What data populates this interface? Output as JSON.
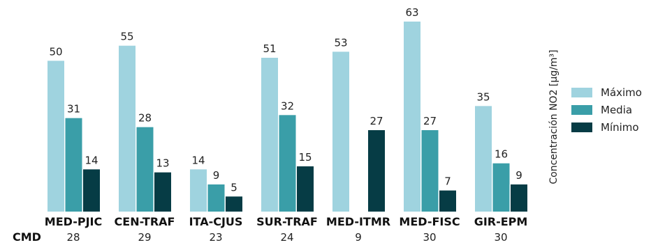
{
  "chart_data": {
    "type": "bar",
    "categories": [
      "MED-PJIC",
      "CEN-TRAF",
      "ITA-CJUS",
      "SUR-TRAF",
      "MED-ITMR",
      "MED-FISC",
      "GIR-EPM"
    ],
    "series": [
      {
        "name": "Máximo",
        "values": [
          50,
          55,
          14,
          51,
          53,
          63,
          35
        ],
        "color": "#9fd3df"
      },
      {
        "name": "Media",
        "values": [
          31,
          28,
          9,
          32,
          null,
          27,
          16
        ],
        "color": "#3a9ea8"
      },
      {
        "name": "Mínimo",
        "values": [
          14,
          13,
          5,
          15,
          27,
          7,
          9
        ],
        "color": "#063c45"
      }
    ],
    "cmd": {
      "label": "CMD",
      "values": [
        "28",
        "29",
        "23",
        "24",
        "9",
        "30",
        "30"
      ]
    },
    "ylabel": "Concentración NO2 [µg/m³]",
    "ylim": [
      0,
      63
    ],
    "legend_position": "right",
    "grid": false
  }
}
